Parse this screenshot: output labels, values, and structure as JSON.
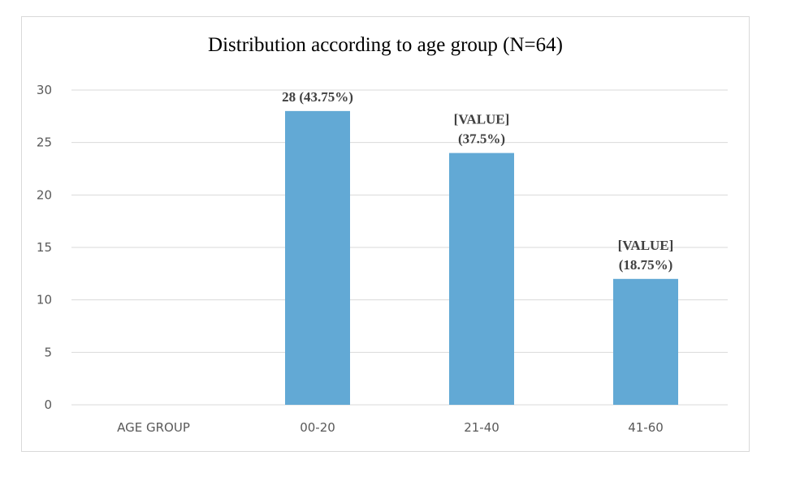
{
  "chart_data": {
    "type": "bar",
    "title": "Distribution  according  to age group (N=64)",
    "categories": [
      "AGE GROUP",
      "00-20",
      "21-40",
      "41-60"
    ],
    "values": [
      null,
      28,
      24,
      12
    ],
    "data_labels": [
      [],
      [
        "28 (43.75%)"
      ],
      [
        "[VALUE]",
        "(37.5%)"
      ],
      [
        "[VALUE]",
        "(18.75%)"
      ]
    ],
    "yticks": [
      0,
      5,
      10,
      15,
      20,
      25,
      30
    ],
    "ylim": [
      0,
      30
    ],
    "grid": true,
    "legend": "none",
    "bar_color": "#62a9d5",
    "grid_color": "#d9d9d9"
  }
}
